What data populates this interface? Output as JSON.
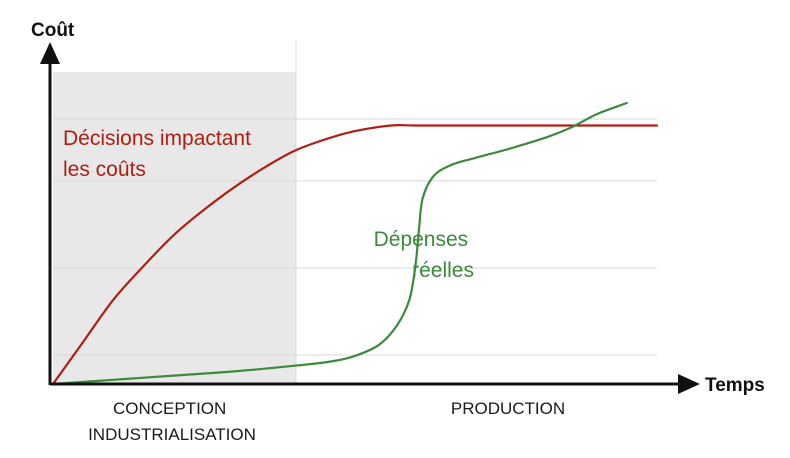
{
  "chart_data": {
    "type": "line",
    "title": "",
    "ylabel": "Coût",
    "xlabel": "Temps",
    "xlim": [
      0,
      100
    ],
    "ylim": [
      0,
      100
    ],
    "grid": true,
    "phases": [
      {
        "label_lines": [
          "CONCEPTION",
          "INDUSTRIALISATION"
        ],
        "x_range": [
          0,
          39.6
        ],
        "shaded": true,
        "shade_color": "#e8e8e8"
      },
      {
        "label_lines": [
          "PRODUCTION"
        ],
        "x_range": [
          39.6,
          100
        ],
        "shaded": false
      }
    ],
    "series": [
      {
        "name": "Décisions impactant les coûts",
        "label_lines": [
          "Décisions impactant",
          "les coûts"
        ],
        "color": "#b01e12",
        "points": [
          [
            0,
            0
          ],
          [
            2,
            6
          ],
          [
            5,
            15
          ],
          [
            10,
            30
          ],
          [
            15,
            42
          ],
          [
            20,
            53
          ],
          [
            25,
            62
          ],
          [
            30,
            70
          ],
          [
            35,
            77
          ],
          [
            40,
            83
          ],
          [
            45,
            87
          ],
          [
            50,
            90
          ],
          [
            56,
            92
          ],
          [
            60,
            92
          ],
          [
            70,
            92
          ],
          [
            80,
            92
          ],
          [
            90,
            92
          ],
          [
            100,
            92
          ]
        ]
      },
      {
        "name": "Dépenses réelles",
        "label_lines": [
          "Dépenses",
          "réelles"
        ],
        "color": "#3d8a3d",
        "points": [
          [
            0,
            0
          ],
          [
            10,
            1.5
          ],
          [
            20,
            3
          ],
          [
            30,
            4.5
          ],
          [
            40,
            6.5
          ],
          [
            46,
            8
          ],
          [
            50,
            10
          ],
          [
            54,
            14
          ],
          [
            57,
            21
          ],
          [
            59,
            30
          ],
          [
            60,
            42
          ],
          [
            60.6,
            55
          ],
          [
            61.2,
            66
          ],
          [
            63,
            74
          ],
          [
            66,
            78
          ],
          [
            70,
            80.5
          ],
          [
            76,
            84
          ],
          [
            82,
            88
          ],
          [
            86,
            91.5
          ],
          [
            90,
            96
          ],
          [
            95,
            100
          ]
        ]
      }
    ]
  }
}
